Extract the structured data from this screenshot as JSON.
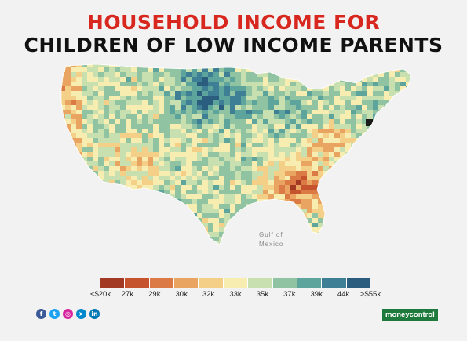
{
  "title": {
    "line1": "HOUSEHOLD INCOME FOR",
    "line2": "CHILDREN OF LOW INCOME PARENTS"
  },
  "map": {
    "water_label_line1": "Gulf of",
    "water_label_line2": "Mexico",
    "colors": [
      "#a23a23",
      "#c4532e",
      "#db7a45",
      "#e9a462",
      "#f4cf88",
      "#f7edb0",
      "#c8dfb0",
      "#8fc3a2",
      "#5da49c",
      "#3f7f95",
      "#2b5d7f"
    ]
  },
  "legend": {
    "labels": [
      "<$20k",
      "27k",
      "29k",
      "30k",
      "32k",
      "33k",
      "35k",
      "37k",
      "39k",
      "44k",
      ">$55k"
    ]
  },
  "footer": {
    "social": [
      {
        "icon": "facebook-icon",
        "glyph": "f",
        "color": "#3b5998"
      },
      {
        "icon": "twitter-icon",
        "glyph": "t",
        "color": "#1da1f2"
      },
      {
        "icon": "instagram-icon",
        "glyph": "◎",
        "color": "#d6249f"
      },
      {
        "icon": "telegram-icon",
        "glyph": "➤",
        "color": "#0088cc"
      },
      {
        "icon": "linkedin-icon",
        "glyph": "in",
        "color": "#0077b5"
      }
    ],
    "brand": "moneycontrol"
  }
}
